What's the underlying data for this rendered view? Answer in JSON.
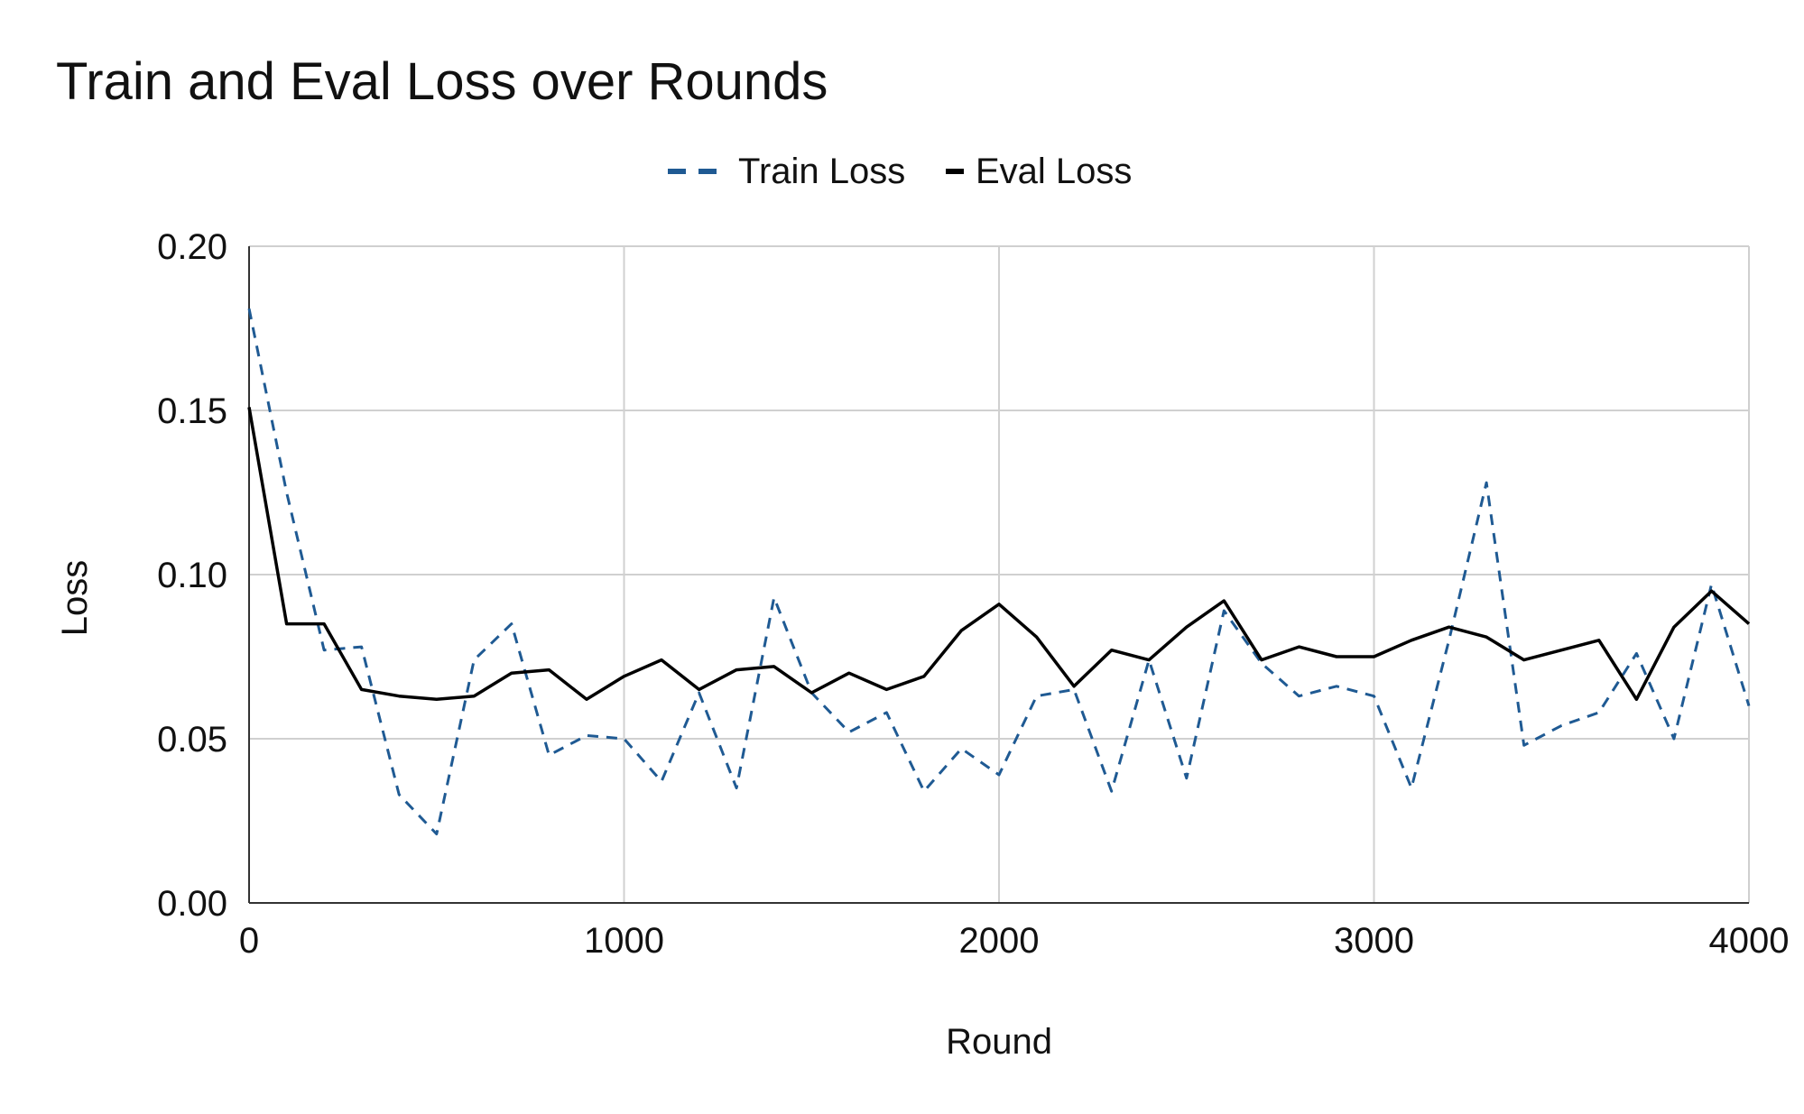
{
  "chart_data": {
    "type": "line",
    "title": "Train and Eval Loss over Rounds",
    "xlabel": "Round",
    "ylabel": "Loss",
    "xlim": [
      0,
      4000
    ],
    "ylim": [
      0,
      0.2
    ],
    "x_ticks": [
      "0",
      "1000",
      "2000",
      "3000",
      "4000"
    ],
    "x_tick_values": [
      0,
      1000,
      2000,
      3000,
      4000
    ],
    "y_ticks": [
      "0.00",
      "0.05",
      "0.10",
      "0.15",
      "0.20"
    ],
    "y_tick_values": [
      0,
      0.05,
      0.1,
      0.15,
      0.2
    ],
    "grid": true,
    "legend_position": "top-center",
    "x": [
      0,
      100,
      200,
      300,
      400,
      500,
      600,
      700,
      800,
      900,
      1000,
      1100,
      1200,
      1300,
      1400,
      1500,
      1600,
      1700,
      1800,
      1900,
      2000,
      2100,
      2200,
      2300,
      2400,
      2500,
      2600,
      2700,
      2800,
      2900,
      3000,
      3100,
      3200,
      3300,
      3400,
      3500,
      3600,
      3700,
      3800,
      3900,
      4000
    ],
    "series": [
      {
        "name": "Train Loss",
        "color": "#1f5a93",
        "style": "dashed",
        "values": [
          0.181,
          0.125,
          0.077,
          0.078,
          0.033,
          0.021,
          0.074,
          0.085,
          0.045,
          0.051,
          0.05,
          0.037,
          0.064,
          0.035,
          0.093,
          0.064,
          0.052,
          0.058,
          0.034,
          0.047,
          0.039,
          0.063,
          0.065,
          0.034,
          0.074,
          0.038,
          0.089,
          0.073,
          0.063,
          0.066,
          0.063,
          0.035,
          0.08,
          0.128,
          0.048,
          0.054,
          0.058,
          0.076,
          0.05,
          0.097,
          0.06
        ]
      },
      {
        "name": "Eval Loss",
        "color": "#000000",
        "style": "solid",
        "values": [
          0.151,
          0.085,
          0.085,
          0.065,
          0.063,
          0.062,
          0.063,
          0.07,
          0.071,
          0.062,
          0.069,
          0.074,
          0.065,
          0.071,
          0.072,
          0.064,
          0.07,
          0.065,
          0.069,
          0.083,
          0.091,
          0.081,
          0.066,
          0.077,
          0.074,
          0.084,
          0.092,
          0.074,
          0.078,
          0.075,
          0.075,
          0.08,
          0.084,
          0.081,
          0.074,
          0.077,
          0.08,
          0.062,
          0.084,
          0.095,
          0.085
        ]
      }
    ]
  }
}
